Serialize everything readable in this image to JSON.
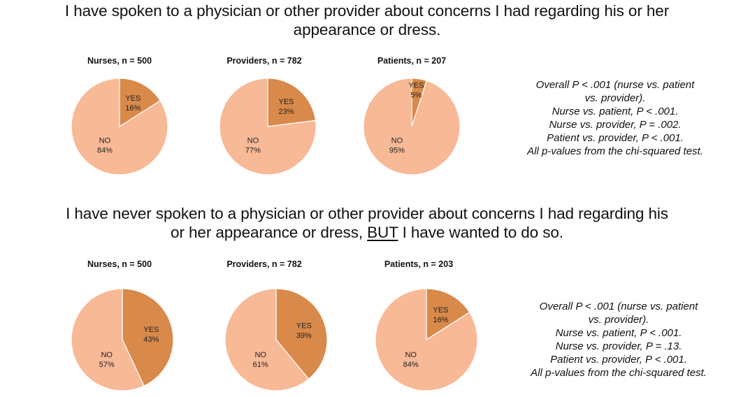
{
  "colors": {
    "yes": "#D9894A",
    "no": "#F8B997",
    "edge": "#FFFFFF"
  },
  "sections": [
    {
      "question": {
        "line1": "I have spoken to a physician or other provider about concerns I had regarding his or her",
        "line2": "appearance or dress."
      },
      "stats": [
        "Overall P < .001 (nurse vs. patient",
        "vs. provider).",
        "Nurse vs. patient, P < .001.",
        "Nurse vs. provider, P = .002.",
        "Patient vs. provider, P < .001.",
        "All p-values from the chi-squared test."
      ]
    },
    {
      "question": {
        "line1": "I have never spoken to a physician or other provider about concerns I had regarding his",
        "line2_pre": "or her appearance or dress, ",
        "line2_underlined": "BUT",
        "line2_post": " I have wanted to do so."
      },
      "stats": [
        "Overall P < .001 (nurse vs. patient",
        "vs. provider).",
        "Nurse vs. patient, P < .001.",
        "Nurse vs. provider, P = .13.",
        "Patient vs. provider, P < .001.",
        "All p-values from the chi-squared test."
      ]
    }
  ],
  "chart_data": [
    {
      "type": "pie",
      "title": "Nurses, n = 500",
      "labels": [
        "YES",
        "NO"
      ],
      "values": [
        16,
        84
      ],
      "value_labels": [
        "16%",
        "84%"
      ]
    },
    {
      "type": "pie",
      "title": "Providers, n = 782",
      "labels": [
        "YES",
        "NO"
      ],
      "values": [
        23,
        77
      ],
      "value_labels": [
        "23%",
        "77%"
      ]
    },
    {
      "type": "pie",
      "title": "Patients, n = 207",
      "labels": [
        "YES",
        "NO"
      ],
      "values": [
        5,
        95
      ],
      "value_labels": [
        "5%",
        "95%"
      ]
    },
    {
      "type": "pie",
      "title": "Nurses, n = 500",
      "labels": [
        "YES",
        "NO"
      ],
      "values": [
        43,
        57
      ],
      "value_labels": [
        "43%",
        "57%"
      ]
    },
    {
      "type": "pie",
      "title": "Providers, n = 782",
      "labels": [
        "YES",
        "NO"
      ],
      "values": [
        39,
        61
      ],
      "value_labels": [
        "39%",
        "61%"
      ]
    },
    {
      "type": "pie",
      "title": "Patients, n = 203",
      "labels": [
        "YES",
        "NO"
      ],
      "values": [
        16,
        84
      ],
      "value_labels": [
        "16%",
        "84%"
      ]
    }
  ]
}
